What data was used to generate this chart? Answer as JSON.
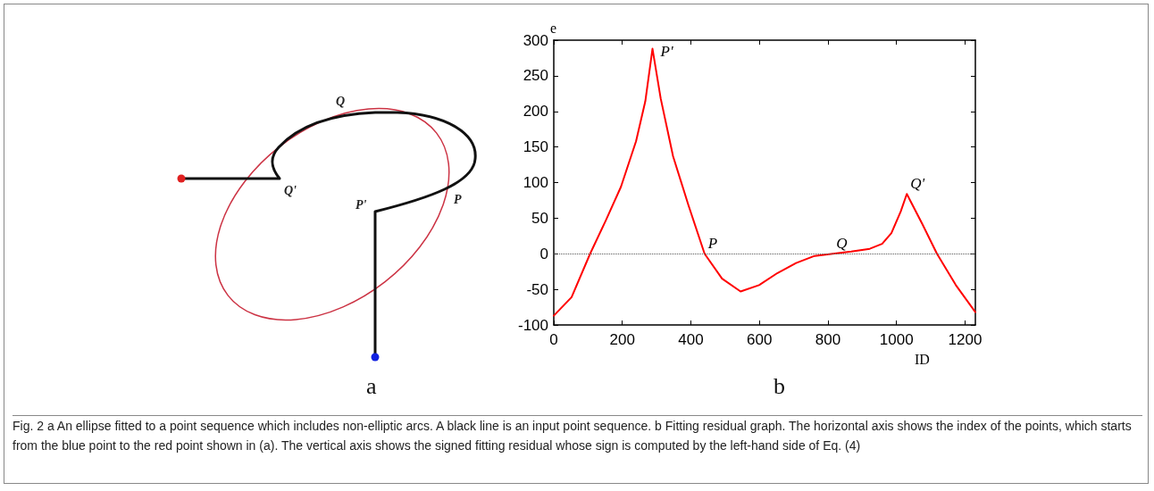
{
  "chart_data": [
    {
      "type": "other",
      "title": "a",
      "annotations": [
        "Q",
        "Q'",
        "P'",
        "P"
      ]
    },
    {
      "type": "line",
      "title": "b",
      "xlabel": "ID",
      "ylabel": "e",
      "color": "#ff0000",
      "x": [
        0,
        52,
        106,
        151,
        196,
        240,
        267,
        288,
        312,
        348,
        393,
        440,
        491,
        545,
        599,
        653,
        707,
        761,
        814,
        868,
        922,
        958,
        985,
        1012,
        1030,
        1075,
        1118,
        1173,
        1230
      ],
      "values": [
        -87,
        -61,
        0,
        46,
        94,
        158,
        214,
        288,
        218,
        137,
        68,
        0,
        -35,
        -53,
        -44,
        -27,
        -13,
        -3,
        0,
        3,
        7,
        14,
        29,
        59,
        84,
        42,
        0,
        -44,
        -82
      ],
      "xlim": [
        0,
        1230
      ],
      "xticks": [
        0,
        200,
        400,
        600,
        800,
        1000,
        1200
      ],
      "ylim": [
        -100,
        300
      ],
      "yticks": [
        -100,
        -50,
        0,
        50,
        100,
        150,
        200,
        250,
        300
      ],
      "grid": false,
      "marker": "none",
      "line_style": "solid",
      "ref_lines": [
        {
          "axis": "y",
          "value": 0,
          "line_style": "dotted",
          "color": "#555555"
        }
      ],
      "annotations": [
        {
          "text": "P'",
          "x": 288,
          "y": 288
        },
        {
          "text": "P",
          "x": 440,
          "y": 0
        },
        {
          "text": "Q",
          "x": 814,
          "y": 0
        },
        {
          "text": "Q'",
          "x": 1030,
          "y": 84
        }
      ]
    },
    {
      "type": "other",
      "annotations": [
        "Fig. 2 a An ellipse fitted to a point sequence which includes non-elliptic arcs. A black line is an input point sequence. b Fitting residual graph. The horizontal axis shows the index of the points, which starts from the blue point to the red point shown in (a). The vertical axis shows the signed fitting residual whose sign is computed by the left-hand side of Eq. (4)"
      ]
    }
  ]
}
